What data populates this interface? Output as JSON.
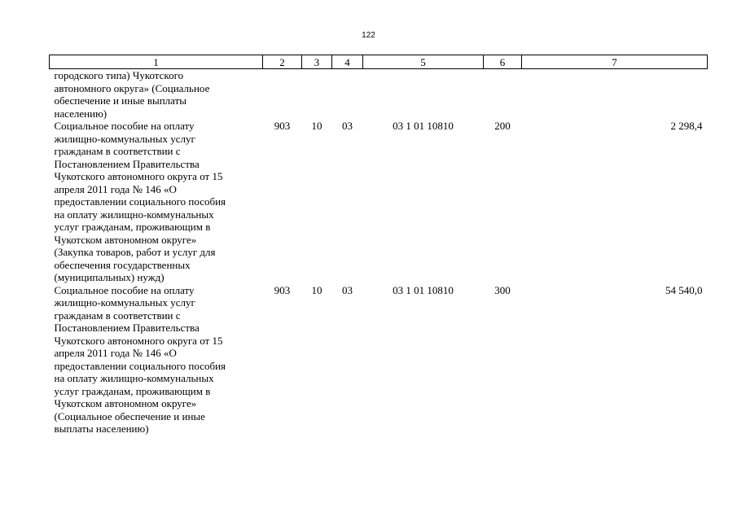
{
  "page_number": "122",
  "table": {
    "headers": [
      "1",
      "2",
      "3",
      "4",
      "5",
      "6",
      "7"
    ],
    "rows": [
      {
        "desc_lines": [
          "городского типа) Чукотского",
          "автономного округа» (Социальное",
          "обеспечение и иные выплаты",
          "населению)"
        ],
        "c2": "",
        "c3": "",
        "c4": "",
        "c5": "",
        "c6": "",
        "c7": ""
      },
      {
        "desc_lines": [
          "Социальное пособие на оплату",
          "жилищно-коммунальных услуг",
          "гражданам в соответствии с",
          "Постановлением Правительства",
          "Чукотского автономного округа от 15",
          "апреля 2011 года № 146 «О",
          "предоставлении социального пособия",
          "на оплату жилищно-коммунальных",
          "услуг гражданам, проживающим в",
          "Чукотском автономном округе»",
          "(Закупка товаров, работ и услуг для",
          "обеспечения государственных",
          "(муниципальных) нужд)"
        ],
        "c2": "903",
        "c3": "10",
        "c4": "03",
        "c5": "03 1 01 10810",
        "c6": "200",
        "c7": "2 298,4"
      },
      {
        "desc_lines": [
          "Социальное пособие на оплату",
          "жилищно-коммунальных услуг",
          "гражданам в соответствии с",
          "Постановлением Правительства",
          "Чукотского автономного округа от 15",
          "апреля 2011 года № 146 «О",
          "предоставлении социального пособия",
          "на оплату жилищно-коммунальных",
          "услуг гражданам, проживающим в",
          "Чукотском автономном округе»",
          "(Социальное обеспечение и иные",
          "выплаты населению)"
        ],
        "c2": "903",
        "c3": "10",
        "c4": "03",
        "c5": "03 1 01 10810",
        "c6": "300",
        "c7": "54 540,0"
      }
    ]
  }
}
